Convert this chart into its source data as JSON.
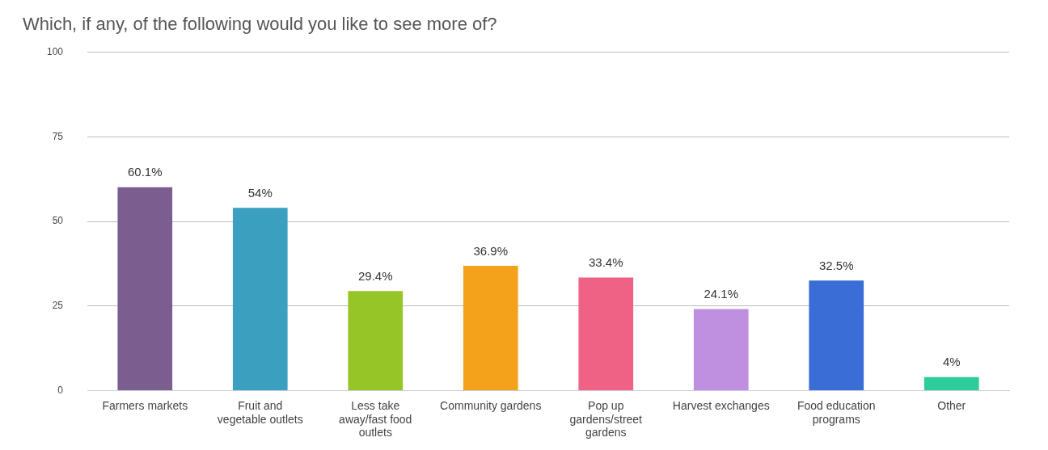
{
  "chart_data": {
    "type": "bar",
    "title": "Which, if any, of the following would you like to see more of?",
    "categories": [
      "Farmers markets",
      "Fruit and vegetable outlets",
      "Less take away/fast food outlets",
      "Community gardens",
      "Pop up gardens/street gardens",
      "Harvest exchanges",
      "Food education programs",
      "Other"
    ],
    "values": [
      60.1,
      54,
      29.4,
      36.9,
      33.4,
      24.1,
      32.5,
      4
    ],
    "value_labels": [
      "60.1%",
      "54%",
      "29.4%",
      "36.9%",
      "33.4%",
      "24.1%",
      "32.5%",
      "4%"
    ],
    "colors": [
      "#7b5e8f",
      "#3ba0c0",
      "#95c526",
      "#f4a21c",
      "#f06285",
      "#bf8fe0",
      "#3a6dd6",
      "#2dcc9a"
    ],
    "ylim": [
      0,
      100
    ],
    "yticks": [
      0,
      25,
      50,
      75,
      100
    ],
    "grid": "y"
  }
}
